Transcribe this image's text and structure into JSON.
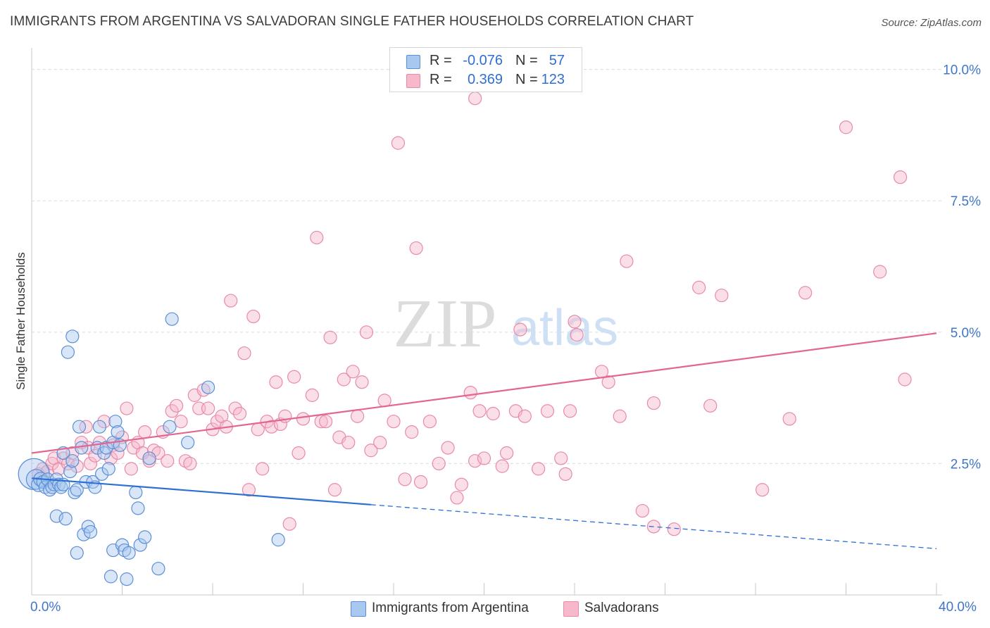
{
  "header": {
    "title": "IMMIGRANTS FROM ARGENTINA VS SALVADORAN SINGLE FATHER HOUSEHOLDS CORRELATION CHART",
    "source": "Source: ZipAtlas.com"
  },
  "legend": {
    "rows": [
      {
        "r_label": "R =",
        "r_value": "-0.076",
        "n_label": "N =",
        "n_value": "57",
        "color": "#a9c8f0"
      },
      {
        "r_label": "R =",
        "r_value": "0.369",
        "n_label": "N =",
        "n_value": "123",
        "color": "#f7b8cb"
      }
    ]
  },
  "bottom_legend": {
    "series1": "Immigrants from Argentina",
    "series2": "Salvadorans"
  },
  "watermark": {
    "part1": "ZIP",
    "part2": "atlas"
  },
  "colors": {
    "blue_fill": "#a9c8f0",
    "blue_stroke": "#5b8fd6",
    "blue_line": "#2e6fd6",
    "pink_fill": "#f7b8cb",
    "pink_stroke": "#e88aa8",
    "pink_line": "#e36591",
    "grid": "#d9d9d9",
    "tick_label": "#3f76c9"
  },
  "chart_data": {
    "type": "scatter",
    "title": "IMMIGRANTS FROM ARGENTINA VS SALVADORAN SINGLE FATHER HOUSEHOLDS CORRELATION CHART",
    "xlabel": "",
    "ylabel": "Single Father Households",
    "xlim": [
      0,
      40
    ],
    "ylim": [
      0,
      10.25
    ],
    "x_tick_labels": {
      "min": "0.0%",
      "max": "40.0%"
    },
    "y_ticks": [
      {
        "value": 2.5,
        "label": "2.5%"
      },
      {
        "value": 5.0,
        "label": "5.0%"
      },
      {
        "value": 7.5,
        "label": "7.5%"
      },
      {
        "value": 10.0,
        "label": "10.0%"
      }
    ],
    "series": [
      {
        "name": "Immigrants from Argentina",
        "r": -0.076,
        "n": 57,
        "trend": {
          "x0": 0,
          "y0": 2.22,
          "x_solid_end": 15.0,
          "x1": 40,
          "y1": 0.88
        },
        "points": [
          [
            0.1,
            2.3,
            22
          ],
          [
            0.2,
            2.2,
            14
          ],
          [
            0.3,
            2.1,
            10
          ],
          [
            0.4,
            2.2,
            10
          ],
          [
            0.5,
            2.15,
            9
          ],
          [
            0.6,
            2.05,
            9
          ],
          [
            0.7,
            2.2,
            9
          ],
          [
            0.8,
            2.0,
            9
          ],
          [
            0.9,
            2.05,
            9
          ],
          [
            1.0,
            2.1,
            9
          ],
          [
            1.1,
            2.2,
            9
          ],
          [
            1.2,
            2.1,
            9
          ],
          [
            1.3,
            2.05,
            9
          ],
          [
            1.4,
            2.1,
            9
          ],
          [
            1.1,
            1.5,
            9
          ],
          [
            1.4,
            2.7,
            9
          ],
          [
            1.5,
            1.45,
            9
          ],
          [
            1.6,
            4.62,
            9
          ],
          [
            1.7,
            2.35,
            9
          ],
          [
            1.8,
            2.55,
            9
          ],
          [
            1.8,
            4.92,
            9
          ],
          [
            1.9,
            1.95,
            9
          ],
          [
            2.0,
            2.0,
            9
          ],
          [
            2.0,
            0.8,
            9
          ],
          [
            2.1,
            3.2,
            9
          ],
          [
            2.2,
            2.8,
            9
          ],
          [
            2.3,
            1.15,
            9
          ],
          [
            2.4,
            2.15,
            9
          ],
          [
            2.5,
            1.3,
            9
          ],
          [
            2.6,
            1.2,
            9
          ],
          [
            2.7,
            2.15,
            9
          ],
          [
            2.8,
            2.05,
            9
          ],
          [
            2.9,
            2.8,
            9
          ],
          [
            3.0,
            3.2,
            9
          ],
          [
            3.1,
            2.3,
            9
          ],
          [
            3.2,
            2.7,
            9
          ],
          [
            3.3,
            2.8,
            9
          ],
          [
            3.4,
            2.4,
            9
          ],
          [
            3.5,
            0.35,
            9
          ],
          [
            3.6,
            2.9,
            9
          ],
          [
            3.6,
            0.85,
            9
          ],
          [
            3.7,
            3.3,
            9
          ],
          [
            3.8,
            3.1,
            9
          ],
          [
            3.9,
            2.85,
            9
          ],
          [
            4.0,
            0.95,
            9
          ],
          [
            4.1,
            0.85,
            9
          ],
          [
            4.2,
            0.3,
            9
          ],
          [
            4.3,
            0.8,
            9
          ],
          [
            4.6,
            1.95,
            9
          ],
          [
            4.7,
            1.65,
            9
          ],
          [
            4.8,
            0.95,
            9
          ],
          [
            5.0,
            1.1,
            9
          ],
          [
            5.2,
            2.6,
            9
          ],
          [
            5.6,
            0.5,
            9
          ],
          [
            6.1,
            3.2,
            9
          ],
          [
            6.2,
            5.25,
            9
          ],
          [
            6.9,
            2.9,
            9
          ],
          [
            7.8,
            3.95,
            9
          ],
          [
            10.9,
            1.05,
            9
          ]
        ]
      },
      {
        "name": "Salvadorans",
        "r": 0.369,
        "n": 123,
        "trend": {
          "x0": 0,
          "y0": 2.7,
          "x1": 40,
          "y1": 4.98
        },
        "points": [
          [
            0.3,
            2.3,
            9
          ],
          [
            0.5,
            2.4,
            9
          ],
          [
            0.7,
            2.35,
            9
          ],
          [
            0.9,
            2.5,
            9
          ],
          [
            1.0,
            2.6,
            9
          ],
          [
            1.2,
            2.4,
            9
          ],
          [
            1.4,
            2.6,
            9
          ],
          [
            1.6,
            2.5,
            9
          ],
          [
            1.8,
            2.7,
            9
          ],
          [
            2.0,
            2.45,
            9
          ],
          [
            2.2,
            2.9,
            9
          ],
          [
            2.4,
            3.2,
            9
          ],
          [
            2.5,
            2.8,
            9
          ],
          [
            2.6,
            2.5,
            9
          ],
          [
            2.8,
            2.65,
            9
          ],
          [
            3.0,
            2.9,
            9
          ],
          [
            3.2,
            3.3,
            9
          ],
          [
            3.5,
            2.6,
            9
          ],
          [
            3.6,
            2.85,
            9
          ],
          [
            3.8,
            2.7,
            9
          ],
          [
            4.0,
            3.0,
            9
          ],
          [
            4.2,
            3.55,
            9
          ],
          [
            4.4,
            2.4,
            9
          ],
          [
            4.5,
            2.8,
            9
          ],
          [
            4.7,
            2.9,
            9
          ],
          [
            4.9,
            2.7,
            9
          ],
          [
            5.0,
            3.1,
            9
          ],
          [
            5.2,
            2.55,
            9
          ],
          [
            5.4,
            2.75,
            9
          ],
          [
            5.6,
            2.7,
            9
          ],
          [
            5.8,
            3.1,
            9
          ],
          [
            6.0,
            2.55,
            9
          ],
          [
            6.2,
            3.5,
            9
          ],
          [
            6.4,
            3.6,
            9
          ],
          [
            6.6,
            3.3,
            9
          ],
          [
            6.8,
            2.55,
            9
          ],
          [
            7.0,
            2.5,
            9
          ],
          [
            7.2,
            3.8,
            9
          ],
          [
            7.4,
            3.55,
            9
          ],
          [
            7.6,
            3.9,
            9
          ],
          [
            7.8,
            3.55,
            9
          ],
          [
            8.0,
            3.15,
            9
          ],
          [
            8.2,
            3.3,
            9
          ],
          [
            8.4,
            3.4,
            9
          ],
          [
            8.6,
            3.2,
            9
          ],
          [
            8.8,
            5.6,
            9
          ],
          [
            9.0,
            3.55,
            9
          ],
          [
            9.2,
            3.45,
            9
          ],
          [
            9.4,
            4.6,
            9
          ],
          [
            9.6,
            2.0,
            9
          ],
          [
            9.8,
            5.3,
            9
          ],
          [
            10.0,
            3.15,
            9
          ],
          [
            10.2,
            2.4,
            9
          ],
          [
            10.4,
            3.3,
            9
          ],
          [
            10.6,
            3.2,
            9
          ],
          [
            10.8,
            4.05,
            9
          ],
          [
            11.0,
            3.25,
            9
          ],
          [
            11.2,
            3.4,
            9
          ],
          [
            11.4,
            1.35,
            9
          ],
          [
            11.6,
            4.15,
            9
          ],
          [
            11.8,
            2.7,
            9
          ],
          [
            12.0,
            3.35,
            9
          ],
          [
            12.4,
            3.8,
            9
          ],
          [
            12.6,
            6.8,
            9
          ],
          [
            12.8,
            3.3,
            9
          ],
          [
            13.0,
            3.3,
            9
          ],
          [
            13.2,
            4.9,
            9
          ],
          [
            13.4,
            2.0,
            9
          ],
          [
            13.6,
            3.0,
            9
          ],
          [
            13.8,
            4.1,
            9
          ],
          [
            14.0,
            2.9,
            9
          ],
          [
            14.2,
            4.25,
            9
          ],
          [
            14.4,
            3.4,
            9
          ],
          [
            14.6,
            4.05,
            9
          ],
          [
            14.8,
            5.0,
            9
          ],
          [
            15.0,
            2.75,
            9
          ],
          [
            15.4,
            2.9,
            9
          ],
          [
            15.6,
            3.7,
            9
          ],
          [
            16.0,
            3.3,
            9
          ],
          [
            16.2,
            8.6,
            9
          ],
          [
            16.5,
            2.2,
            9
          ],
          [
            16.8,
            3.1,
            9
          ],
          [
            17.0,
            6.6,
            9
          ],
          [
            17.2,
            2.15,
            9
          ],
          [
            17.6,
            3.3,
            9
          ],
          [
            18.0,
            2.5,
            9
          ],
          [
            18.4,
            2.8,
            9
          ],
          [
            18.8,
            1.85,
            9
          ],
          [
            19.0,
            2.1,
            9
          ],
          [
            19.4,
            3.85,
            9
          ],
          [
            19.6,
            2.55,
            9
          ],
          [
            19.8,
            3.5,
            9
          ],
          [
            20.0,
            2.6,
            9
          ],
          [
            20.4,
            3.45,
            9
          ],
          [
            20.8,
            2.45,
            9
          ],
          [
            21.0,
            2.7,
            9
          ],
          [
            21.4,
            3.5,
            9
          ],
          [
            21.6,
            5.05,
            9
          ],
          [
            21.8,
            3.4,
            9
          ],
          [
            22.4,
            2.4,
            9
          ],
          [
            22.8,
            3.5,
            9
          ],
          [
            23.4,
            2.6,
            9
          ],
          [
            23.6,
            2.3,
            9
          ],
          [
            23.8,
            3.5,
            9
          ],
          [
            24.0,
            5.2,
            9
          ],
          [
            25.2,
            4.25,
            9
          ],
          [
            25.5,
            4.05,
            9
          ],
          [
            26.0,
            3.4,
            9
          ],
          [
            27.0,
            1.6,
            9
          ],
          [
            27.5,
            1.3,
            9
          ],
          [
            27.5,
            3.65,
            9
          ],
          [
            28.4,
            1.25,
            9
          ],
          [
            29.5,
            5.85,
            9
          ],
          [
            30.0,
            3.6,
            9
          ],
          [
            30.5,
            5.7,
            9
          ],
          [
            32.3,
            2.0,
            9
          ],
          [
            33.5,
            3.35,
            9
          ],
          [
            34.2,
            5.75,
            9
          ],
          [
            36.0,
            8.9,
            9
          ],
          [
            37.5,
            6.15,
            9
          ],
          [
            38.6,
            4.1,
            9
          ],
          [
            38.4,
            7.95,
            9
          ],
          [
            19.6,
            9.45,
            9
          ],
          [
            26.3,
            6.35,
            9
          ],
          [
            24.1,
            4.95,
            9
          ]
        ]
      }
    ]
  }
}
